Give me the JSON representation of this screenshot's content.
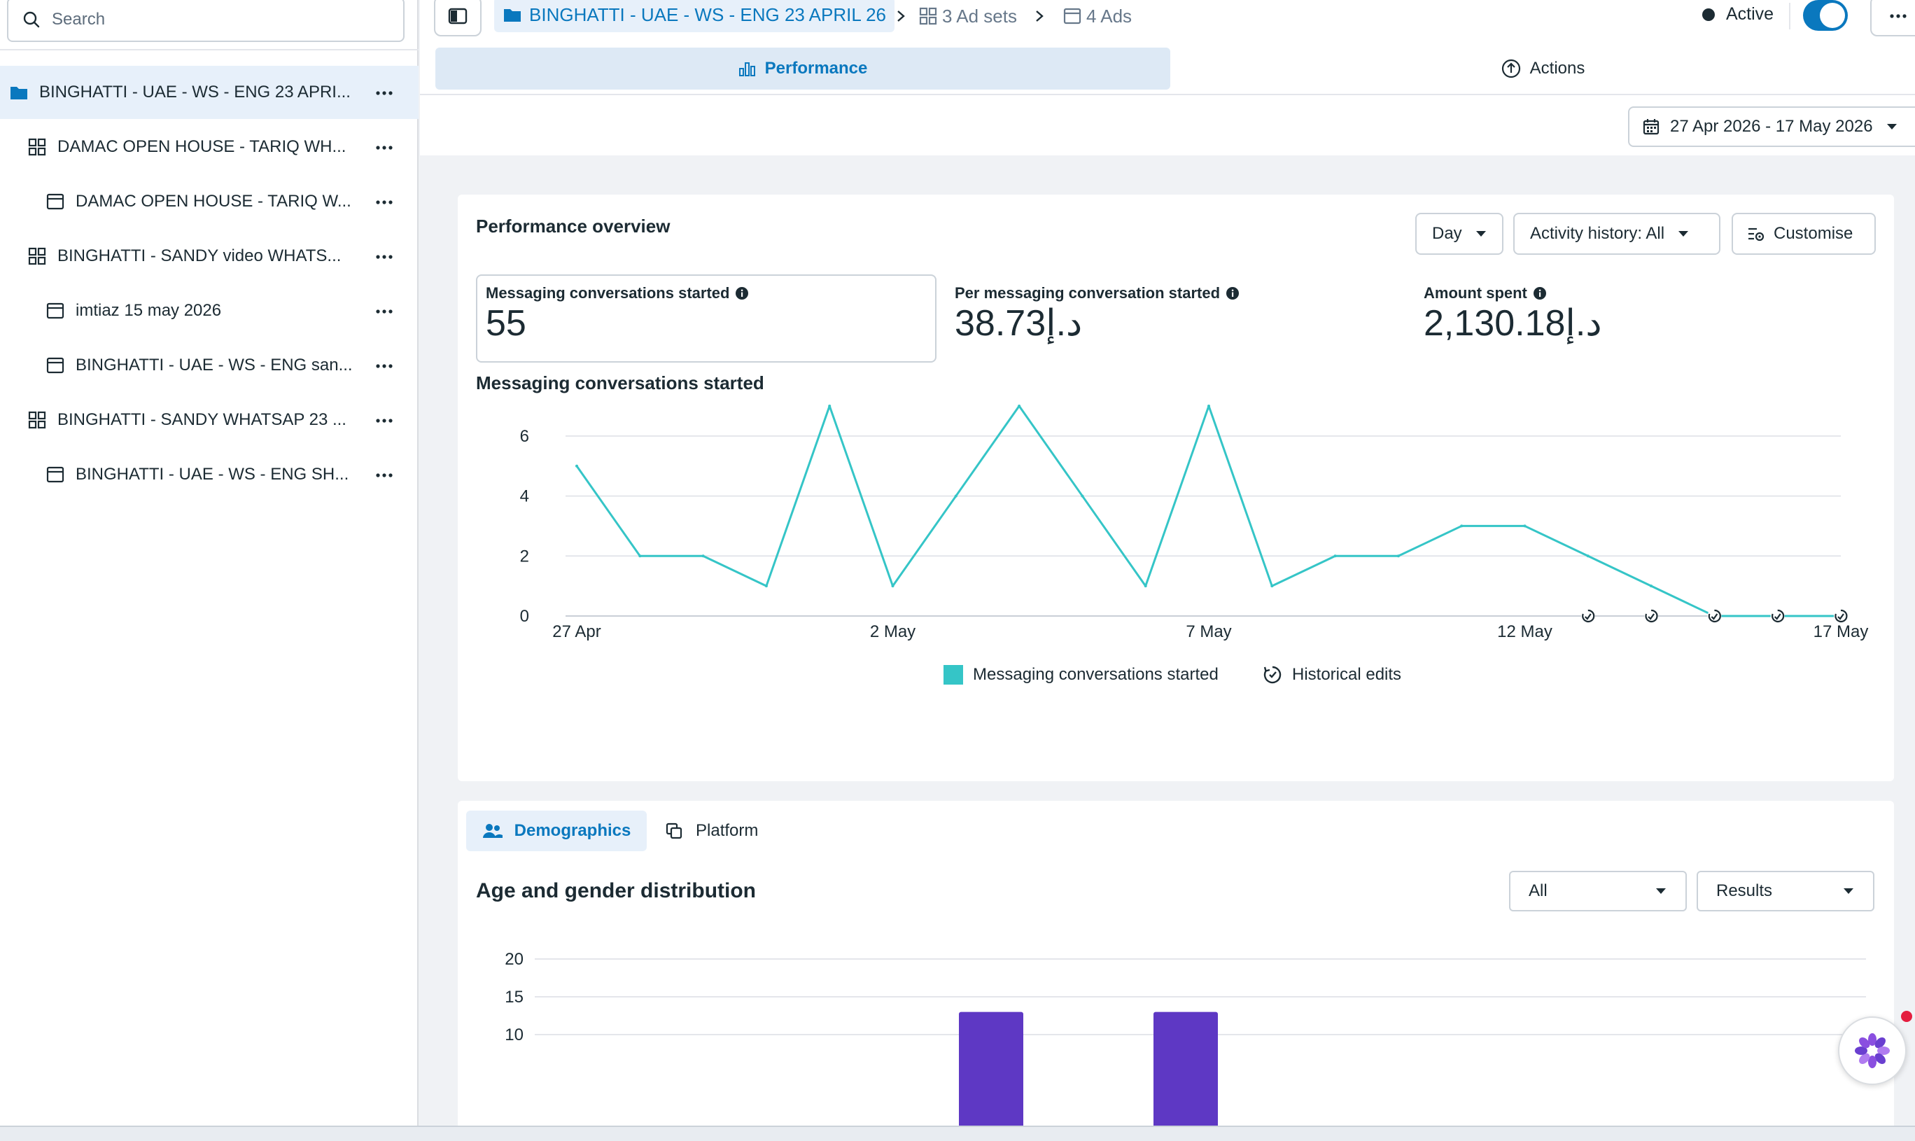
{
  "sidebar": {
    "search_placeholder": "Search",
    "items": [
      {
        "label": "BINGHATTI - UAE - WS - ENG 23 APRI...",
        "type": "campaign",
        "icon": "folder-icon",
        "selected": true
      },
      {
        "label": "DAMAC OPEN HOUSE - TARIQ WH...",
        "type": "ad-set",
        "icon": "ad-set-grid-icon"
      },
      {
        "label": "DAMAC OPEN HOUSE - TARIQ W...",
        "type": "ad",
        "icon": "ad-icon"
      },
      {
        "label": "BINGHATTI - SANDY video WHATS...",
        "type": "ad-set",
        "icon": "ad-set-grid-icon"
      },
      {
        "label": "imtiaz 15 may 2026",
        "type": "ad",
        "icon": "ad-icon"
      },
      {
        "label": "BINGHATTI - UAE - WS - ENG san...",
        "type": "ad",
        "icon": "ad-icon"
      },
      {
        "label": "BINGHATTI - SANDY WHATSAP 23 ...",
        "type": "ad-set",
        "icon": "ad-set-grid-icon"
      },
      {
        "label": "BINGHATTI - UAE - WS - ENG SH...",
        "type": "ad",
        "icon": "ad-icon"
      }
    ]
  },
  "breadcrumb": {
    "campaign": "BINGHATTI - UAE - WS - ENG 23 APRIL 26",
    "ad_sets": "3 Ad sets",
    "ads": "4 Ads"
  },
  "status": {
    "label": "Active",
    "toggle_on": true
  },
  "tabs": {
    "performance": "Performance",
    "actions": "Actions"
  },
  "date_range": "27 Apr 2026 - 17 May 2026",
  "overview": {
    "title": "Performance overview",
    "controls": {
      "granularity": "Day",
      "activity": "Activity history: All",
      "customise": "Customise"
    },
    "metrics": [
      {
        "label": "Messaging conversations started",
        "value": "55"
      },
      {
        "label": "Per messaging conversation started",
        "value": "38.73د.إ"
      },
      {
        "label": "Amount spent",
        "value": "2,130.18د.إ"
      }
    ],
    "chart_title": "Messaging conversations started"
  },
  "chart_data": [
    {
      "type": "line",
      "title": "Messaging conversations started",
      "x": [
        "27 Apr",
        "28 Apr",
        "29 Apr",
        "30 Apr",
        "1 May",
        "2 May",
        "3 May",
        "4 May",
        "5 May",
        "6 May",
        "7 May",
        "8 May",
        "9 May",
        "10 May",
        "11 May",
        "12 May",
        "13 May",
        "14 May",
        "15 May",
        "16 May",
        "17 May"
      ],
      "x_tick_labels": [
        "27 Apr",
        "2 May",
        "7 May",
        "12 May",
        "17 May"
      ],
      "series": [
        {
          "name": "Messaging conversations started",
          "values": [
            5,
            2,
            2,
            1,
            7,
            1,
            4,
            7,
            4,
            1,
            7,
            1,
            2,
            2,
            3,
            3,
            2,
            1,
            0,
            0,
            0
          ],
          "color": "#35c5c7"
        }
      ],
      "historical_edit_markers": [
        "13 May",
        "14 May",
        "15 May",
        "16 May",
        "17 May"
      ],
      "y_ticks": [
        0,
        2,
        4,
        6
      ],
      "ylim": [
        0,
        7
      ],
      "grid": true,
      "legend": [
        "Messaging conversations started",
        "Historical edits"
      ],
      "legend_placement": "bottom-center"
    },
    {
      "type": "bar",
      "title": "Age and gender distribution",
      "y_ticks": [
        10,
        15,
        20
      ],
      "ylim": [
        0,
        20
      ],
      "visible_bars": [
        13,
        13
      ],
      "bar_color": "#5e38c4",
      "grid": true
    }
  ],
  "demographics": {
    "tabs": {
      "demographics": "Demographics",
      "platform": "Platform"
    },
    "title": "Age and gender distribution",
    "filter_all": "All",
    "filter_results": "Results"
  },
  "colors": {
    "accent": "#0a78be",
    "series": "#35c5c7",
    "bar": "#5e38c4"
  }
}
